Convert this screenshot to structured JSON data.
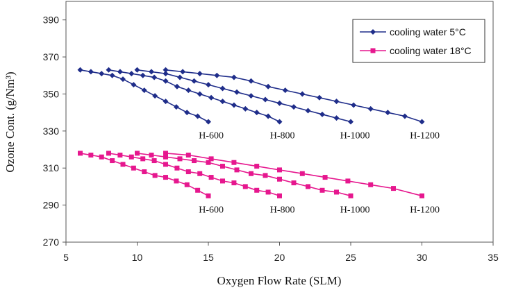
{
  "chart_data": {
    "type": "line",
    "title": "",
    "xlabel": "Oxygen Flow Rate (SLM)",
    "ylabel": "Ozone Cont. (g/Nm³)",
    "xlim": [
      5,
      35
    ],
    "ylim": [
      270,
      400
    ],
    "x_ticks": [
      5,
      10,
      15,
      20,
      25,
      30,
      35
    ],
    "y_ticks": [
      270,
      290,
      310,
      330,
      350,
      370,
      390
    ],
    "grid": false,
    "legend_position": "top-right",
    "legend": [
      {
        "label": "cooling water 5°C",
        "color": "#1f2d8a",
        "marker": "diamond"
      },
      {
        "label": "cooling water 18°C",
        "color": "#e6178e",
        "marker": "square"
      }
    ],
    "series": [
      {
        "group": "cooling water 5°C",
        "curve": "H-600",
        "color": "#1f2d8a",
        "marker": "diamond",
        "x": [
          6,
          6.75,
          7.5,
          8.25,
          9,
          9.75,
          10.5,
          11.25,
          12,
          12.75,
          13.5,
          14.25,
          15
        ],
        "y": [
          363,
          362,
          361,
          360,
          358,
          355,
          352,
          349,
          346,
          343,
          340,
          338,
          335
        ]
      },
      {
        "group": "cooling water 5°C",
        "curve": "H-800",
        "color": "#1f2d8a",
        "marker": "diamond",
        "x": [
          8,
          8.8,
          9.6,
          10.4,
          11.2,
          12,
          12.8,
          13.6,
          14.4,
          15.2,
          16,
          16.8,
          17.6,
          18.4,
          19.2,
          20
        ],
        "y": [
          363,
          362,
          361,
          360,
          359,
          357,
          354,
          352,
          350,
          348,
          346,
          344,
          342,
          340,
          338,
          335
        ]
      },
      {
        "group": "cooling water 5°C",
        "curve": "H-1000",
        "color": "#1f2d8a",
        "marker": "diamond",
        "x": [
          10,
          11,
          12,
          13,
          14,
          15,
          16,
          17,
          18,
          19,
          20,
          21,
          22,
          23,
          24,
          25
        ],
        "y": [
          363,
          362,
          361,
          359,
          357,
          355,
          353,
          351,
          349,
          347,
          345,
          343,
          341,
          339,
          337,
          335
        ]
      },
      {
        "group": "cooling water 5°C",
        "curve": "H-1200",
        "color": "#1f2d8a",
        "marker": "diamond",
        "x": [
          12,
          13.2,
          14.4,
          15.6,
          16.8,
          18,
          19.2,
          20.4,
          21.6,
          22.8,
          24,
          25.2,
          26.4,
          27.6,
          28.8,
          30
        ],
        "y": [
          363,
          362,
          361,
          360,
          359,
          357,
          354,
          352,
          350,
          348,
          346,
          344,
          342,
          340,
          338,
          335
        ]
      },
      {
        "group": "cooling water 18°C",
        "curve": "H-600",
        "color": "#e6178e",
        "marker": "square",
        "x": [
          6,
          6.75,
          7.5,
          8.25,
          9,
          9.75,
          10.5,
          11.25,
          12,
          12.75,
          13.5,
          14.25,
          15
        ],
        "y": [
          318,
          317,
          316,
          314,
          312,
          310,
          308,
          306,
          305,
          303,
          301,
          298,
          295
        ]
      },
      {
        "group": "cooling water 18°C",
        "curve": "H-800",
        "color": "#e6178e",
        "marker": "square",
        "x": [
          8,
          8.8,
          9.6,
          10.4,
          11.2,
          12,
          12.8,
          13.6,
          14.4,
          15.2,
          16,
          16.8,
          17.6,
          18.4,
          19.2,
          20
        ],
        "y": [
          318,
          317,
          316,
          315,
          314,
          312,
          310,
          308,
          307,
          305,
          303,
          302,
          300,
          298,
          297,
          295
        ]
      },
      {
        "group": "cooling water 18°C",
        "curve": "H-1000",
        "color": "#e6178e",
        "marker": "square",
        "x": [
          10,
          11,
          12,
          13,
          14,
          15,
          16,
          17,
          18,
          19,
          20,
          21,
          22,
          23,
          24,
          25
        ],
        "y": [
          318,
          317,
          316,
          315,
          314,
          313,
          311,
          309,
          307,
          306,
          304,
          302,
          300,
          298,
          297,
          295
        ]
      },
      {
        "group": "cooling water 18°C",
        "curve": "H-1200",
        "color": "#e6178e",
        "marker": "square",
        "x": [
          12,
          13.6,
          15.2,
          16.8,
          18.4,
          20,
          21.6,
          23.2,
          24.8,
          26.4,
          28,
          30
        ],
        "y": [
          318,
          317,
          315,
          313,
          311,
          309,
          307,
          305,
          303,
          301,
          299,
          295
        ]
      }
    ],
    "annotations": [
      {
        "text": "H-600",
        "x": 15.2,
        "y": 326
      },
      {
        "text": "H-800",
        "x": 20.2,
        "y": 326
      },
      {
        "text": "H-1000",
        "x": 25.3,
        "y": 326
      },
      {
        "text": "H-1200",
        "x": 30.2,
        "y": 326
      },
      {
        "text": "H-600",
        "x": 15.2,
        "y": 286
      },
      {
        "text": "H-800",
        "x": 20.2,
        "y": 286
      },
      {
        "text": "H-1000",
        "x": 25.3,
        "y": 286
      },
      {
        "text": "H-1200",
        "x": 30.2,
        "y": 286
      }
    ]
  }
}
